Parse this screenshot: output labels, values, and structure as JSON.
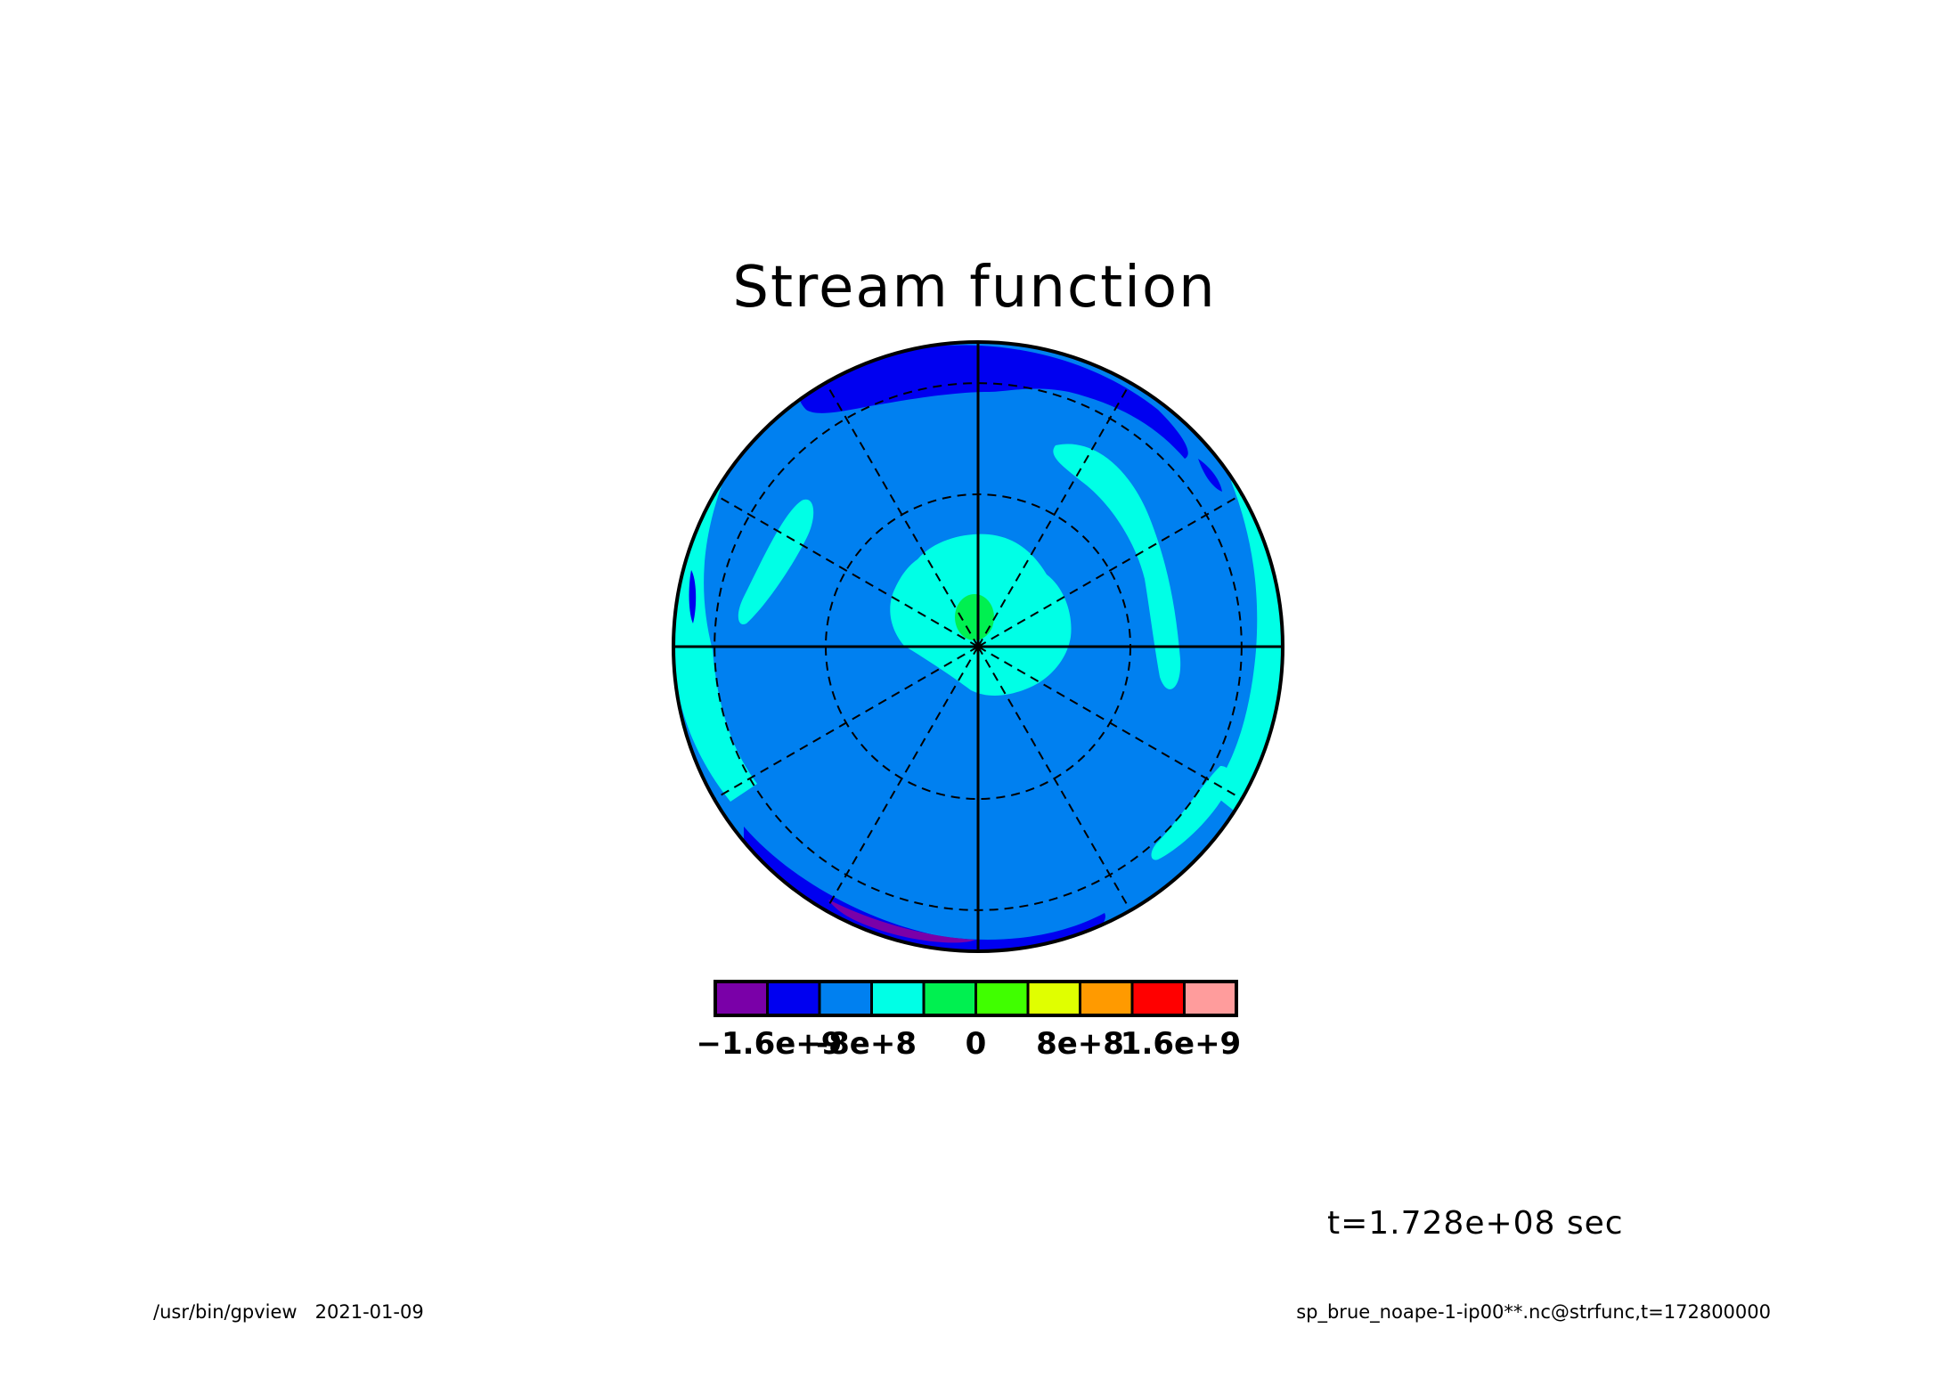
{
  "title": "Stream function",
  "time_label": "t=1.728e+08 sec",
  "footer": {
    "program": "/usr/bin/gpview",
    "date": "2021-01-09",
    "source": "sp_brue_noape-1-ip00**.nc@strfunc,t=172800000"
  },
  "colorbar": {
    "colors": [
      "#7a00a8",
      "#0000f0",
      "#0080f0",
      "#00ffe6",
      "#00f050",
      "#40ff00",
      "#e0ff00",
      "#ff9a00",
      "#ff0000",
      "#ff9c9c"
    ],
    "tick_labels": [
      "−1.6e+9",
      "-8e+8",
      "0",
      "8e+8",
      "1.6e+9"
    ]
  },
  "map": {
    "projection": "polar stereographic",
    "background_color": "#0080f0"
  }
}
